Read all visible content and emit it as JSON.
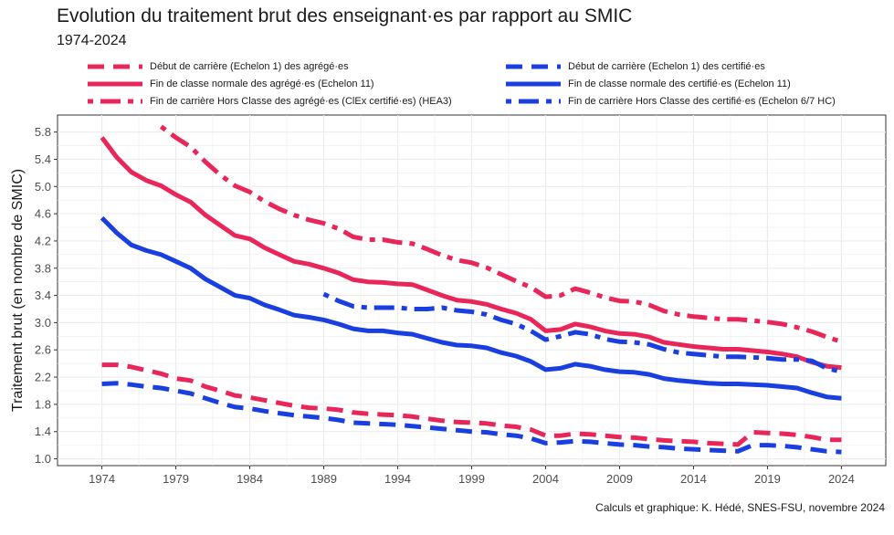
{
  "title": "Evolution du traitement brut des enseignant·es par rapport au SMIC",
  "subtitle": "1974-2024",
  "caption": "Calculs et graphique: K. Hédé, SNES-FSU, novembre 2024",
  "colors": {
    "agreges": "#E8265A",
    "certifies": "#1A3FE0",
    "grid": "#EBEBEB",
    "axis_text": "#4D4D4D"
  },
  "chart_data": {
    "type": "line",
    "ylabel": "Traitement brut (en nombre de SMIC)",
    "xlim": [
      1971,
      2027
    ],
    "ylim": [
      0.9,
      6.05
    ],
    "x_ticks": [
      1974,
      1979,
      1984,
      1989,
      1994,
      1999,
      2004,
      2009,
      2014,
      2019,
      2024
    ],
    "y_ticks": [
      1.0,
      1.4,
      1.8,
      2.2,
      2.6,
      3.0,
      3.4,
      3.8,
      4.2,
      4.6,
      5.0,
      5.4,
      5.8
    ],
    "y_tick_labels": [
      "1.0",
      "1.4",
      "1.8",
      "2.2",
      "2.6",
      "3.0",
      "3.4",
      "3.8",
      "4.2",
      "4.6",
      "5.0",
      "5.4",
      "5.8"
    ],
    "grid": true,
    "legend_position": "top",
    "series": [
      {
        "name": "Début de carrière (Echelon 1) des agrégé·es",
        "group": "agreges",
        "linestyle": "dashed",
        "x": [
          1974,
          1975,
          1976,
          1977,
          1978,
          1979,
          1980,
          1981,
          1982,
          1983,
          1984,
          1985,
          1986,
          1987,
          1988,
          1989,
          1990,
          1991,
          1992,
          1993,
          1994,
          1995,
          1996,
          1997,
          1998,
          1999,
          2000,
          2001,
          2002,
          2003,
          2004,
          2005,
          2006,
          2007,
          2008,
          2009,
          2010,
          2011,
          2012,
          2013,
          2014,
          2015,
          2016,
          2017,
          2018,
          2019,
          2020,
          2021,
          2022,
          2023,
          2024
        ],
        "y": [
          2.38,
          2.38,
          2.35,
          2.3,
          2.25,
          2.18,
          2.15,
          2.06,
          2.0,
          1.93,
          1.9,
          1.86,
          1.82,
          1.78,
          1.75,
          1.74,
          1.72,
          1.68,
          1.66,
          1.65,
          1.64,
          1.62,
          1.59,
          1.56,
          1.54,
          1.53,
          1.52,
          1.49,
          1.47,
          1.43,
          1.34,
          1.34,
          1.37,
          1.36,
          1.34,
          1.32,
          1.31,
          1.29,
          1.27,
          1.26,
          1.25,
          1.23,
          1.22,
          1.21,
          1.39,
          1.38,
          1.37,
          1.35,
          1.32,
          1.28,
          1.28
        ]
      },
      {
        "name": "Début de carrière (Echelon 1) des certifié·es",
        "group": "certifies",
        "linestyle": "dashed",
        "x": [
          1974,
          1975,
          1976,
          1977,
          1978,
          1979,
          1980,
          1981,
          1982,
          1983,
          1984,
          1985,
          1986,
          1987,
          1988,
          1989,
          1990,
          1991,
          1992,
          1993,
          1994,
          1995,
          1996,
          1997,
          1998,
          1999,
          2000,
          2001,
          2002,
          2003,
          2004,
          2005,
          2006,
          2007,
          2008,
          2009,
          2010,
          2011,
          2012,
          2013,
          2014,
          2015,
          2016,
          2017,
          2018,
          2019,
          2020,
          2021,
          2022,
          2023,
          2024
        ],
        "y": [
          2.1,
          2.11,
          2.09,
          2.06,
          2.04,
          2.0,
          1.96,
          1.89,
          1.82,
          1.76,
          1.74,
          1.7,
          1.67,
          1.64,
          1.62,
          1.6,
          1.57,
          1.53,
          1.52,
          1.51,
          1.5,
          1.48,
          1.46,
          1.44,
          1.42,
          1.4,
          1.39,
          1.36,
          1.34,
          1.3,
          1.23,
          1.24,
          1.26,
          1.25,
          1.23,
          1.21,
          1.2,
          1.18,
          1.17,
          1.15,
          1.14,
          1.13,
          1.12,
          1.11,
          1.2,
          1.2,
          1.19,
          1.17,
          1.14,
          1.11,
          1.1
        ]
      },
      {
        "name": "Fin de classe normale des agrégé·es (Echelon 11)",
        "group": "agreges",
        "linestyle": "solid",
        "x": [
          1974,
          1975,
          1976,
          1977,
          1978,
          1979,
          1980,
          1981,
          1982,
          1983,
          1984,
          1985,
          1986,
          1987,
          1988,
          1989,
          1990,
          1991,
          1992,
          1993,
          1994,
          1995,
          1996,
          1997,
          1998,
          1999,
          2000,
          2001,
          2002,
          2003,
          2004,
          2005,
          2006,
          2007,
          2008,
          2009,
          2010,
          2011,
          2012,
          2013,
          2014,
          2015,
          2016,
          2017,
          2018,
          2019,
          2020,
          2021,
          2022,
          2023,
          2024
        ],
        "y": [
          5.72,
          5.43,
          5.21,
          5.09,
          5.01,
          4.88,
          4.77,
          4.58,
          4.43,
          4.28,
          4.23,
          4.1,
          4.0,
          3.9,
          3.86,
          3.8,
          3.73,
          3.63,
          3.6,
          3.59,
          3.57,
          3.56,
          3.48,
          3.4,
          3.33,
          3.31,
          3.27,
          3.2,
          3.14,
          3.05,
          2.88,
          2.9,
          2.98,
          2.94,
          2.88,
          2.84,
          2.83,
          2.79,
          2.71,
          2.68,
          2.65,
          2.63,
          2.61,
          2.61,
          2.59,
          2.57,
          2.54,
          2.5,
          2.42,
          2.36,
          2.34
        ]
      },
      {
        "name": "Fin de classe normale des certifié·es (Echelon 11)",
        "group": "certifies",
        "linestyle": "solid",
        "x": [
          1974,
          1975,
          1976,
          1977,
          1978,
          1979,
          1980,
          1981,
          1982,
          1983,
          1984,
          1985,
          1986,
          1987,
          1988,
          1989,
          1990,
          1991,
          1992,
          1993,
          1994,
          1995,
          1996,
          1997,
          1998,
          1999,
          2000,
          2001,
          2002,
          2003,
          2004,
          2005,
          2006,
          2007,
          2008,
          2009,
          2010,
          2011,
          2012,
          2013,
          2014,
          2015,
          2016,
          2017,
          2018,
          2019,
          2020,
          2021,
          2022,
          2023,
          2024
        ],
        "y": [
          4.54,
          4.32,
          4.14,
          4.06,
          4.0,
          3.9,
          3.8,
          3.64,
          3.52,
          3.4,
          3.36,
          3.26,
          3.19,
          3.11,
          3.08,
          3.04,
          2.98,
          2.91,
          2.88,
          2.88,
          2.85,
          2.83,
          2.77,
          2.71,
          2.67,
          2.66,
          2.63,
          2.56,
          2.51,
          2.43,
          2.31,
          2.33,
          2.39,
          2.36,
          2.31,
          2.28,
          2.27,
          2.24,
          2.18,
          2.15,
          2.13,
          2.11,
          2.1,
          2.1,
          2.09,
          2.08,
          2.06,
          2.04,
          1.97,
          1.91,
          1.89
        ]
      },
      {
        "name": "Fin de carrière Hors Classe des agrégé·es (ClEx certifié·es) (HEA3)",
        "group": "agreges",
        "linestyle": "dashdot",
        "x": [
          1978,
          1979,
          1980,
          1981,
          1982,
          1983,
          1984,
          1985,
          1986,
          1987,
          1988,
          1989,
          1990,
          1991,
          1992,
          1993,
          1994,
          1995,
          1996,
          1997,
          1998,
          1999,
          2000,
          2001,
          2002,
          2003,
          2004,
          2005,
          2006,
          2007,
          2008,
          2009,
          2010,
          2011,
          2012,
          2013,
          2014,
          2015,
          2016,
          2017,
          2018,
          2019,
          2020,
          2021,
          2022,
          2023,
          2024
        ],
        "y": [
          5.88,
          5.72,
          5.58,
          5.36,
          5.17,
          5.01,
          4.92,
          4.78,
          4.67,
          4.58,
          4.51,
          4.46,
          4.38,
          4.26,
          4.22,
          4.22,
          4.18,
          4.16,
          4.08,
          3.99,
          3.92,
          3.88,
          3.81,
          3.71,
          3.61,
          3.52,
          3.38,
          3.4,
          3.5,
          3.44,
          3.37,
          3.32,
          3.31,
          3.26,
          3.17,
          3.12,
          3.09,
          3.07,
          3.05,
          3.05,
          3.03,
          3.01,
          2.98,
          2.93,
          2.87,
          2.79,
          2.72
        ]
      },
      {
        "name": "Fin de carrière Hors Classe des certifié·es (Echelon 6/7 HC)",
        "group": "certifies",
        "linestyle": "dashdot",
        "x": [
          1989,
          1990,
          1991,
          1992,
          1993,
          1994,
          1995,
          1996,
          1997,
          1998,
          1999,
          2000,
          2001,
          2002,
          2003,
          2004,
          2005,
          2006,
          2007,
          2008,
          2009,
          2010,
          2011,
          2012,
          2013,
          2014,
          2015,
          2016,
          2017,
          2018,
          2019,
          2020,
          2021,
          2022,
          2023,
          2024
        ],
        "y": [
          3.42,
          3.32,
          3.24,
          3.22,
          3.22,
          3.22,
          3.2,
          3.2,
          3.22,
          3.18,
          3.16,
          3.12,
          3.04,
          2.98,
          2.88,
          2.75,
          2.8,
          2.86,
          2.83,
          2.76,
          2.72,
          2.71,
          2.68,
          2.61,
          2.56,
          2.54,
          2.52,
          2.5,
          2.5,
          2.49,
          2.48,
          2.46,
          2.46,
          2.44,
          2.33,
          2.28
        ]
      }
    ]
  }
}
